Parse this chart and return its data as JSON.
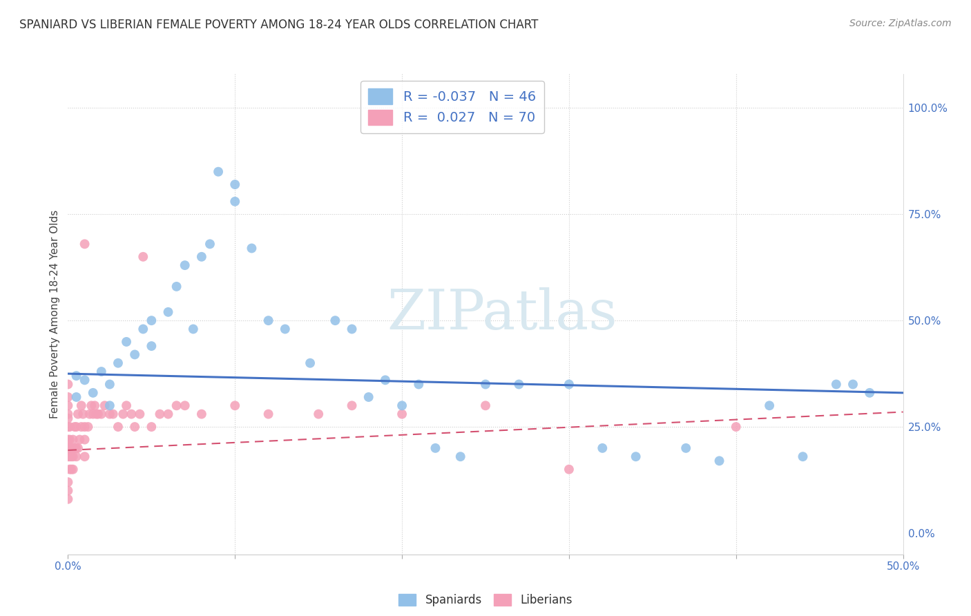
{
  "title": "SPANIARD VS LIBERIAN FEMALE POVERTY AMONG 18-24 YEAR OLDS CORRELATION CHART",
  "source": "Source: ZipAtlas.com",
  "ylabel": "Female Poverty Among 18-24 Year Olds",
  "ylabel_right_labels": [
    "0.0%",
    "25.0%",
    "50.0%",
    "75.0%",
    "100.0%"
  ],
  "ylabel_right_values": [
    0.0,
    0.25,
    0.5,
    0.75,
    1.0
  ],
  "xlim": [
    0.0,
    0.5
  ],
  "ylim": [
    -0.05,
    1.08
  ],
  "spaniard_R": "-0.037",
  "spaniard_N": "46",
  "liberian_R": "0.027",
  "liberian_N": "70",
  "spaniard_color": "#92c0e8",
  "liberian_color": "#f4a0b8",
  "spaniard_line_color": "#4472c4",
  "liberian_line_color": "#d45070",
  "watermark_text": "ZIPatlas",
  "spaniards_x": [
    0.005,
    0.005,
    0.01,
    0.015,
    0.02,
    0.025,
    0.025,
    0.03,
    0.035,
    0.04,
    0.045,
    0.05,
    0.05,
    0.06,
    0.065,
    0.07,
    0.075,
    0.08,
    0.085,
    0.09,
    0.1,
    0.1,
    0.11,
    0.12,
    0.13,
    0.145,
    0.16,
    0.17,
    0.18,
    0.19,
    0.2,
    0.21,
    0.22,
    0.235,
    0.25,
    0.27,
    0.3,
    0.32,
    0.34,
    0.37,
    0.39,
    0.42,
    0.44,
    0.46,
    0.47,
    0.48
  ],
  "spaniards_y": [
    0.37,
    0.32,
    0.36,
    0.33,
    0.38,
    0.35,
    0.3,
    0.4,
    0.45,
    0.42,
    0.48,
    0.5,
    0.44,
    0.52,
    0.58,
    0.63,
    0.48,
    0.65,
    0.68,
    0.85,
    0.78,
    0.82,
    0.67,
    0.5,
    0.48,
    0.4,
    0.5,
    0.48,
    0.32,
    0.36,
    0.3,
    0.35,
    0.2,
    0.18,
    0.35,
    0.35,
    0.35,
    0.2,
    0.18,
    0.2,
    0.17,
    0.3,
    0.18,
    0.35,
    0.35,
    0.33
  ],
  "liberians_x": [
    0.0,
    0.0,
    0.0,
    0.0,
    0.0,
    0.0,
    0.0,
    0.0,
    0.0,
    0.0,
    0.0,
    0.0,
    0.001,
    0.001,
    0.001,
    0.001,
    0.001,
    0.002,
    0.002,
    0.002,
    0.003,
    0.003,
    0.003,
    0.004,
    0.004,
    0.005,
    0.005,
    0.005,
    0.006,
    0.006,
    0.007,
    0.008,
    0.008,
    0.009,
    0.01,
    0.01,
    0.01,
    0.01,
    0.012,
    0.013,
    0.014,
    0.015,
    0.016,
    0.017,
    0.018,
    0.02,
    0.022,
    0.025,
    0.027,
    0.03,
    0.033,
    0.035,
    0.038,
    0.04,
    0.043,
    0.045,
    0.05,
    0.055,
    0.06,
    0.065,
    0.07,
    0.08,
    0.1,
    0.12,
    0.15,
    0.17,
    0.2,
    0.25,
    0.3,
    0.4
  ],
  "liberians_y": [
    0.18,
    0.2,
    0.22,
    0.25,
    0.27,
    0.28,
    0.3,
    0.32,
    0.35,
    0.08,
    0.1,
    0.12,
    0.15,
    0.18,
    0.2,
    0.22,
    0.25,
    0.15,
    0.18,
    0.2,
    0.15,
    0.18,
    0.22,
    0.2,
    0.25,
    0.18,
    0.2,
    0.25,
    0.2,
    0.28,
    0.22,
    0.25,
    0.3,
    0.28,
    0.18,
    0.22,
    0.25,
    0.68,
    0.25,
    0.28,
    0.3,
    0.28,
    0.3,
    0.28,
    0.28,
    0.28,
    0.3,
    0.28,
    0.28,
    0.25,
    0.28,
    0.3,
    0.28,
    0.25,
    0.28,
    0.65,
    0.25,
    0.28,
    0.28,
    0.3,
    0.3,
    0.28,
    0.3,
    0.28,
    0.28,
    0.3,
    0.28,
    0.3,
    0.15,
    0.25
  ]
}
